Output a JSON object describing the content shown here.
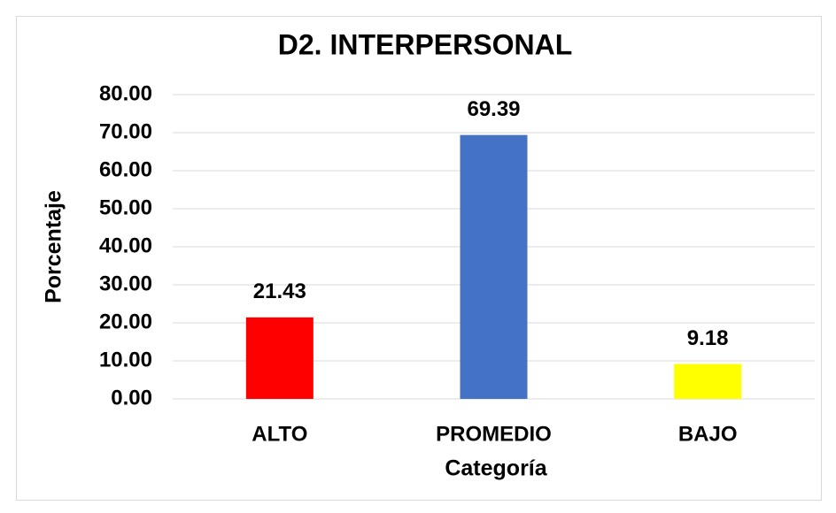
{
  "chart_data": {
    "type": "bar",
    "title": "D2. INTERPERSONAL",
    "x_label": "Categoría",
    "y_label": "Porcentaje",
    "categories": [
      "ALTO",
      "PROMEDIO",
      "BAJO"
    ],
    "values": [
      21.43,
      69.39,
      9.18
    ],
    "colors": [
      "#ff0000",
      "#4472c4",
      "#ffff00"
    ],
    "ylim": [
      0,
      80
    ],
    "yticks": [
      {
        "value": 0,
        "label": "0.00"
      },
      {
        "value": 10,
        "label": "10.00"
      },
      {
        "value": 20,
        "label": "20.00"
      },
      {
        "value": 30,
        "label": "30.00"
      },
      {
        "value": 40,
        "label": "40.00"
      },
      {
        "value": 50,
        "label": "50.00"
      },
      {
        "value": 60,
        "label": "60.00"
      },
      {
        "value": 70,
        "label": "70.00"
      },
      {
        "value": 80,
        "label": "80.00"
      }
    ],
    "grid": true
  }
}
